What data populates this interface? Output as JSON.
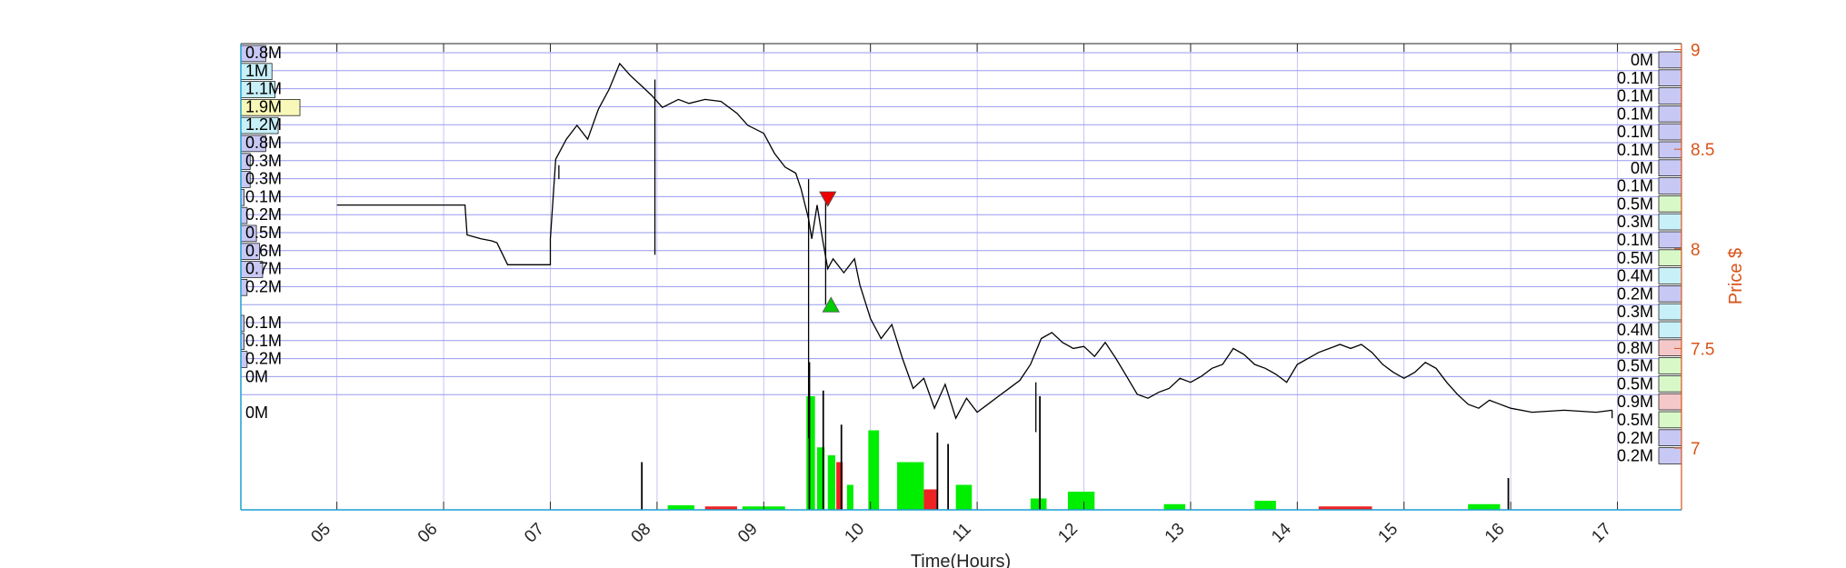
{
  "chart_data": {
    "type": "line",
    "title": "",
    "xlabel": "Time(Hours)",
    "ylabel_right": "Price $",
    "xlim": [
      4.1,
      17.6
    ],
    "x_ticks": [
      5,
      6,
      7,
      8,
      9,
      10,
      11,
      12,
      13,
      14,
      15,
      16,
      17
    ],
    "x_tick_labels": [
      "05",
      "06",
      "07",
      "08",
      "09",
      "10",
      "11",
      "12",
      "13",
      "14",
      "15",
      "16",
      "17"
    ],
    "ylim": [
      6.69,
      9.03
    ],
    "y_ticks": [
      7,
      7.5,
      8,
      8.5,
      9
    ],
    "y_tick_labels": [
      "7",
      "7.5",
      "8",
      "8.5",
      "9"
    ],
    "grid": true,
    "colors": {
      "price_line": "#000000",
      "grid": "#9999ee",
      "right_axis": "#d95319",
      "volume_up": "#00ee00",
      "volume_down": "#ee2222",
      "volume_neutral": "#000000",
      "sell_marker": "#ee0000",
      "buy_marker": "#00cc00",
      "profile_light_blue": "#c8c8f4",
      "profile_cyan": "#c8f0f8",
      "profile_yellow": "#f8f8b8",
      "profile_green": "#d8f8c8",
      "profile_pink": "#f4c8c8"
    },
    "price_series": [
      [
        5.0,
        8.22
      ],
      [
        6.2,
        8.22
      ],
      [
        6.22,
        8.07
      ],
      [
        6.35,
        8.05
      ],
      [
        6.45,
        8.04
      ],
      [
        6.5,
        8.03
      ],
      [
        6.6,
        7.92
      ],
      [
        7.0,
        7.92
      ],
      [
        7.0,
        8.05
      ],
      [
        7.05,
        8.45
      ],
      [
        7.15,
        8.55
      ],
      [
        7.25,
        8.62
      ],
      [
        7.35,
        8.55
      ],
      [
        7.45,
        8.7
      ],
      [
        7.55,
        8.8
      ],
      [
        7.65,
        8.93
      ],
      [
        7.75,
        8.87
      ],
      [
        7.85,
        8.82
      ],
      [
        7.95,
        8.77
      ],
      [
        8.05,
        8.71
      ],
      [
        8.2,
        8.75
      ],
      [
        8.3,
        8.73
      ],
      [
        8.45,
        8.75
      ],
      [
        8.6,
        8.74
      ],
      [
        8.75,
        8.68
      ],
      [
        8.85,
        8.62
      ],
      [
        9.0,
        8.58
      ],
      [
        9.1,
        8.48
      ],
      [
        9.2,
        8.41
      ],
      [
        9.3,
        8.38
      ],
      [
        9.35,
        8.3
      ],
      [
        9.42,
        8.15
      ],
      [
        9.45,
        8.05
      ],
      [
        9.5,
        8.22
      ],
      [
        9.55,
        8.05
      ],
      [
        9.6,
        7.9
      ],
      [
        9.65,
        7.95
      ],
      [
        9.75,
        7.88
      ],
      [
        9.85,
        7.95
      ],
      [
        9.9,
        7.82
      ],
      [
        10.0,
        7.65
      ],
      [
        10.1,
        7.55
      ],
      [
        10.2,
        7.62
      ],
      [
        10.3,
        7.45
      ],
      [
        10.4,
        7.3
      ],
      [
        10.5,
        7.35
      ],
      [
        10.6,
        7.2
      ],
      [
        10.7,
        7.32
      ],
      [
        10.8,
        7.15
      ],
      [
        10.9,
        7.25
      ],
      [
        11.0,
        7.18
      ],
      [
        11.1,
        7.22
      ],
      [
        11.2,
        7.26
      ],
      [
        11.3,
        7.3
      ],
      [
        11.4,
        7.34
      ],
      [
        11.5,
        7.42
      ],
      [
        11.6,
        7.55
      ],
      [
        11.7,
        7.58
      ],
      [
        11.8,
        7.53
      ],
      [
        11.9,
        7.5
      ],
      [
        12.0,
        7.51
      ],
      [
        12.1,
        7.46
      ],
      [
        12.2,
        7.53
      ],
      [
        12.3,
        7.45
      ],
      [
        12.4,
        7.36
      ],
      [
        12.5,
        7.27
      ],
      [
        12.6,
        7.25
      ],
      [
        12.7,
        7.28
      ],
      [
        12.8,
        7.3
      ],
      [
        12.9,
        7.35
      ],
      [
        13.0,
        7.33
      ],
      [
        13.1,
        7.36
      ],
      [
        13.2,
        7.4
      ],
      [
        13.3,
        7.42
      ],
      [
        13.4,
        7.5
      ],
      [
        13.5,
        7.47
      ],
      [
        13.6,
        7.42
      ],
      [
        13.7,
        7.4
      ],
      [
        13.8,
        7.37
      ],
      [
        13.9,
        7.33
      ],
      [
        14.0,
        7.42
      ],
      [
        14.1,
        7.45
      ],
      [
        14.2,
        7.48
      ],
      [
        14.3,
        7.5
      ],
      [
        14.4,
        7.52
      ],
      [
        14.5,
        7.5
      ],
      [
        14.6,
        7.52
      ],
      [
        14.7,
        7.48
      ],
      [
        14.8,
        7.42
      ],
      [
        14.9,
        7.38
      ],
      [
        15.0,
        7.35
      ],
      [
        15.1,
        7.38
      ],
      [
        15.2,
        7.43
      ],
      [
        15.3,
        7.4
      ],
      [
        15.4,
        7.33
      ],
      [
        15.5,
        7.27
      ],
      [
        15.6,
        7.22
      ],
      [
        15.7,
        7.2
      ],
      [
        15.8,
        7.24
      ],
      [
        15.9,
        7.22
      ],
      [
        16.0,
        7.2
      ],
      [
        16.2,
        7.18
      ],
      [
        16.5,
        7.19
      ],
      [
        16.8,
        7.18
      ],
      [
        16.95,
        7.19
      ]
    ],
    "price_spikes": [
      [
        7.08,
        8.35,
        8.42
      ],
      [
        7.98,
        7.97,
        8.85
      ],
      [
        9.42,
        7.05,
        8.35
      ],
      [
        9.58,
        7.72,
        8.25
      ],
      [
        11.55,
        7.08,
        7.33
      ],
      [
        16.95,
        7.15,
        7.19
      ]
    ],
    "markers": [
      {
        "type": "sell",
        "x": 9.6,
        "y": 8.25
      },
      {
        "type": "buy",
        "x": 9.63,
        "y": 7.72
      }
    ],
    "volume_bars": [
      {
        "x": 9.4,
        "w": 0.08,
        "v": 1.0,
        "c": "up"
      },
      {
        "x": 9.5,
        "w": 0.07,
        "v": 0.55,
        "c": "up"
      },
      {
        "x": 9.6,
        "w": 0.07,
        "v": 0.48,
        "c": "up"
      },
      {
        "x": 9.68,
        "w": 0.06,
        "v": 0.42,
        "c": "down"
      },
      {
        "x": 9.78,
        "w": 0.06,
        "v": 0.22,
        "c": "up"
      },
      {
        "x": 9.98,
        "w": 0.1,
        "v": 0.7,
        "c": "up"
      },
      {
        "x": 10.25,
        "w": 0.25,
        "v": 0.42,
        "c": "up"
      },
      {
        "x": 10.5,
        "w": 0.12,
        "v": 0.18,
        "c": "down"
      },
      {
        "x": 10.8,
        "w": 0.15,
        "v": 0.22,
        "c": "up"
      },
      {
        "x": 11.5,
        "w": 0.15,
        "v": 0.1,
        "c": "up"
      },
      {
        "x": 11.85,
        "w": 0.25,
        "v": 0.16,
        "c": "up"
      },
      {
        "x": 12.75,
        "w": 0.2,
        "v": 0.05,
        "c": "up"
      },
      {
        "x": 13.6,
        "w": 0.2,
        "v": 0.08,
        "c": "up"
      },
      {
        "x": 15.6,
        "w": 0.3,
        "v": 0.05,
        "c": "up"
      },
      {
        "x": 8.1,
        "w": 0.25,
        "v": 0.04,
        "c": "up"
      },
      {
        "x": 8.45,
        "w": 0.3,
        "v": 0.03,
        "c": "down"
      },
      {
        "x": 8.8,
        "w": 0.4,
        "v": 0.03,
        "c": "up"
      },
      {
        "x": 14.2,
        "w": 0.5,
        "v": 0.03,
        "c": "down"
      },
      {
        "x": 9.42,
        "w": 0.015,
        "v": 1.3,
        "c": "neutral"
      },
      {
        "x": 9.55,
        "w": 0.015,
        "v": 1.05,
        "c": "neutral"
      },
      {
        "x": 9.72,
        "w": 0.015,
        "v": 0.75,
        "c": "neutral"
      },
      {
        "x": 10.62,
        "w": 0.015,
        "v": 0.68,
        "c": "neutral"
      },
      {
        "x": 10.72,
        "w": 0.015,
        "v": 0.58,
        "c": "neutral"
      },
      {
        "x": 11.58,
        "w": 0.015,
        "v": 1.0,
        "c": "neutral"
      },
      {
        "x": 7.85,
        "w": 0.015,
        "v": 0.42,
        "c": "neutral"
      },
      {
        "x": 15.97,
        "w": 0.015,
        "v": 0.28,
        "c": "neutral"
      }
    ],
    "volume_profile_left": [
      {
        "label": "0.8M",
        "value": 0.8
      },
      {
        "label": "1M",
        "value": 1.0
      },
      {
        "label": "1.1M",
        "value": 1.1
      },
      {
        "label": "1.9M",
        "value": 1.9
      },
      {
        "label": "1.2M",
        "value": 1.2
      },
      {
        "label": "0.8M",
        "value": 0.8
      },
      {
        "label": "0.3M",
        "value": 0.3
      },
      {
        "label": "0.3M",
        "value": 0.3
      },
      {
        "label": "0.1M",
        "value": 0.1
      },
      {
        "label": "0.2M",
        "value": 0.2
      },
      {
        "label": "0.5M",
        "value": 0.5
      },
      {
        "label": "0.6M",
        "value": 0.6
      },
      {
        "label": "0.7M",
        "value": 0.7
      },
      {
        "label": "0.2M",
        "value": 0.2
      },
      {
        "label": "",
        "value": 0
      },
      {
        "label": "0.1M",
        "value": 0.1
      },
      {
        "label": "0.1M",
        "value": 0.1
      },
      {
        "label": "0.2M",
        "value": 0.2
      },
      {
        "label": "0M",
        "value": 0
      },
      {
        "label": "",
        "value": 0
      },
      {
        "label": "0M",
        "value": 0
      }
    ],
    "volume_profile_right": [
      {
        "label": "0M",
        "value": 0
      },
      {
        "label": "0.1M",
        "value": 0.1
      },
      {
        "label": "0.1M",
        "value": 0.1
      },
      {
        "label": "0.1M",
        "value": 0.1
      },
      {
        "label": "0.1M",
        "value": 0.1
      },
      {
        "label": "0.1M",
        "value": 0.1
      },
      {
        "label": "0M",
        "value": 0
      },
      {
        "label": "0.1M",
        "value": 0.1
      },
      {
        "label": "0.5M",
        "value": 0.5
      },
      {
        "label": "0.3M",
        "value": 0.3
      },
      {
        "label": "0.1M",
        "value": 0.1
      },
      {
        "label": "0.5M",
        "value": 0.5
      },
      {
        "label": "0.4M",
        "value": 0.4
      },
      {
        "label": "0.2M",
        "value": 0.2
      },
      {
        "label": "0.3M",
        "value": 0.3
      },
      {
        "label": "0.4M",
        "value": 0.4
      },
      {
        "label": "0.8M",
        "value": 0.8
      },
      {
        "label": "0.5M",
        "value": 0.5
      },
      {
        "label": "0.5M",
        "value": 0.5
      },
      {
        "label": "0.9M",
        "value": 0.9
      },
      {
        "label": "0.5M",
        "value": 0.5
      },
      {
        "label": "0.2M",
        "value": 0.2
      },
      {
        "label": "0.2M",
        "value": 0.2
      }
    ]
  }
}
